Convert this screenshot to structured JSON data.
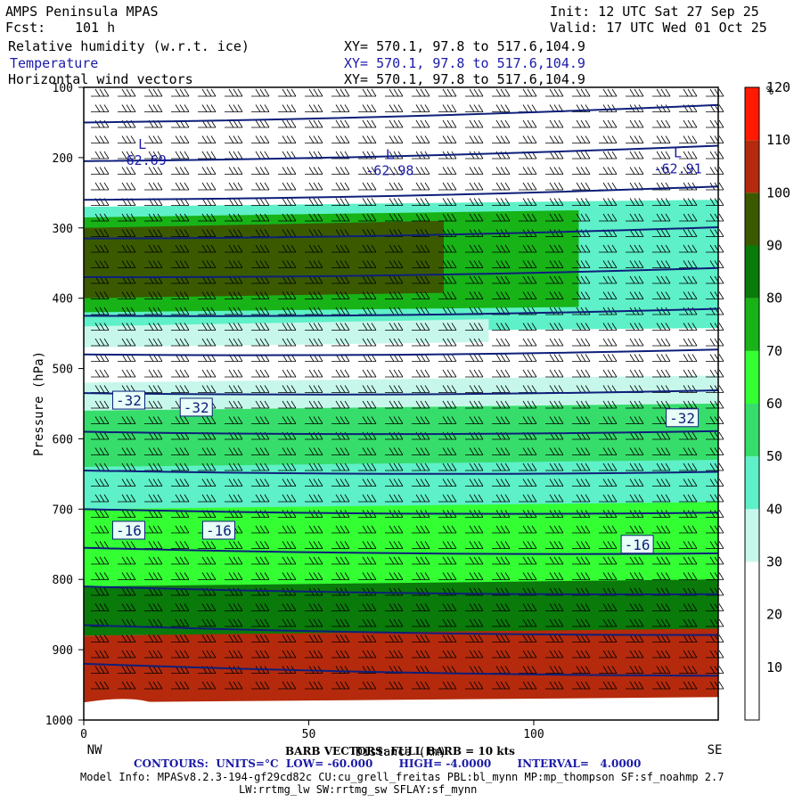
{
  "header": {
    "model": "AMPS Peninsula MPAS",
    "fcst_label": "Fcst:",
    "fcst_value": "101 h",
    "init": "Init: 12 UTC Sat 27 Sep 25",
    "valid": "Valid: 17 UTC Wed 01 Oct 25",
    "fields": [
      {
        "name": "Relative humidity (w.r.t. ice)",
        "xy": "XY= 570.1, 97.8 to 517.6,104.9"
      },
      {
        "name": "Temperature",
        "xy": "XY= 570.1, 97.8 to 517.6,104.9"
      },
      {
        "name": "Horizontal wind vectors",
        "xy": "XY= 570.1, 97.8 to 517.6,104.9"
      }
    ]
  },
  "colors": {
    "rh_scale": [
      "#ffffff",
      "#ffffff",
      "#ffffff",
      "#c7f7eb",
      "#5ef0c8",
      "#37dd6b",
      "#33ff33",
      "#17b317",
      "#0a7a0a",
      "#3b5a00",
      "#b52a0c",
      "#ff1a00"
    ],
    "contour": "#0e1f7a",
    "label_blue": "#1a1aa8"
  },
  "chart_data": {
    "type": "heatmap",
    "ylabel": "Pressure (hPa)",
    "xlabel": "Distance (km)",
    "x_ticks": [
      0,
      50,
      100
    ],
    "y_ticks": [
      100,
      200,
      300,
      400,
      500,
      600,
      700,
      800,
      900,
      1000
    ],
    "xlim": [
      0,
      141
    ],
    "ylim": [
      1000,
      100
    ],
    "x_end_labels": {
      "left": "NW",
      "right": "SE"
    },
    "colorbar": {
      "unit": "%",
      "levels": [
        10,
        20,
        30,
        40,
        50,
        60,
        70,
        80,
        90,
        100,
        110,
        120
      ]
    },
    "rh_layers": [
      {
        "p_top": 270,
        "p_bot": 450,
        "rh": 45,
        "x_end": 141
      },
      {
        "p_top": 285,
        "p_bot": 420,
        "rh": 72,
        "x_end": 110
      },
      {
        "p_top": 300,
        "p_bot": 400,
        "rh": 92,
        "x_end": 80
      },
      {
        "p_top": 440,
        "p_bot": 470,
        "rh": 35,
        "x_end": 90
      },
      {
        "p_top": 470,
        "p_bot": 520,
        "rh": 25,
        "x_end": 141
      },
      {
        "p_top": 520,
        "p_bot": 640,
        "rh": 35,
        "x_end": 141
      },
      {
        "p_top": 560,
        "p_bot": 640,
        "rh": 55,
        "x_end": 141
      },
      {
        "p_top": 640,
        "p_bot": 700,
        "rh": 45,
        "x_end": 141
      },
      {
        "p_top": 700,
        "p_bot": 810,
        "rh": 65,
        "x_end": 141
      },
      {
        "p_top": 810,
        "p_bot": 880,
        "rh": 85,
        "x_end": 141
      },
      {
        "p_top": 880,
        "p_bot": 975,
        "rh": 105,
        "x_end": 141
      }
    ],
    "temperature_contours_C": [
      -60,
      -56,
      -52,
      -48,
      -44,
      -40,
      -36,
      -32,
      -28,
      -24,
      -20,
      -16,
      -12,
      -8,
      -4
    ],
    "contour_labels": [
      {
        "text": "-32",
        "x": 10,
        "p": 545
      },
      {
        "text": "-32",
        "x": 25,
        "p": 555
      },
      {
        "text": "-32",
        "x": 133,
        "p": 570
      },
      {
        "text": "-16",
        "x": 10,
        "p": 730
      },
      {
        "text": "-16",
        "x": 30,
        "p": 730
      },
      {
        "text": "-16",
        "x": 123,
        "p": 750
      }
    ],
    "minima": [
      {
        "mark": "L",
        "value": "-62.69",
        "x": 13,
        "p": 205
      },
      {
        "mark": "L",
        "value": "-62.98",
        "x": 68,
        "p": 220
      },
      {
        "mark": "L",
        "value": "-62.91",
        "x": 132,
        "p": 217
      }
    ],
    "wind_barbs": {
      "legend": "BARB VECTORS: FULL BARB = 10 kts"
    }
  },
  "footer": {
    "barb_legend": "BARB VECTORS: FULL BARB = 10 kts",
    "contours": "CONTOURS:  UNITS=°C  LOW= -60.000       HIGH= -4.0000       INTERVAL=   4.0000",
    "model_info_1": "Model Info: MPASv8.2.3-194-gf29cd82c CU:cu_grell_freitas PBL:bl_mynn MP:mp_thompson SF:sf_noahmp 2.7",
    "model_info_2": "LW:rrtmg_lw SW:rrtmg_sw SFLAY:sf_mynn"
  }
}
